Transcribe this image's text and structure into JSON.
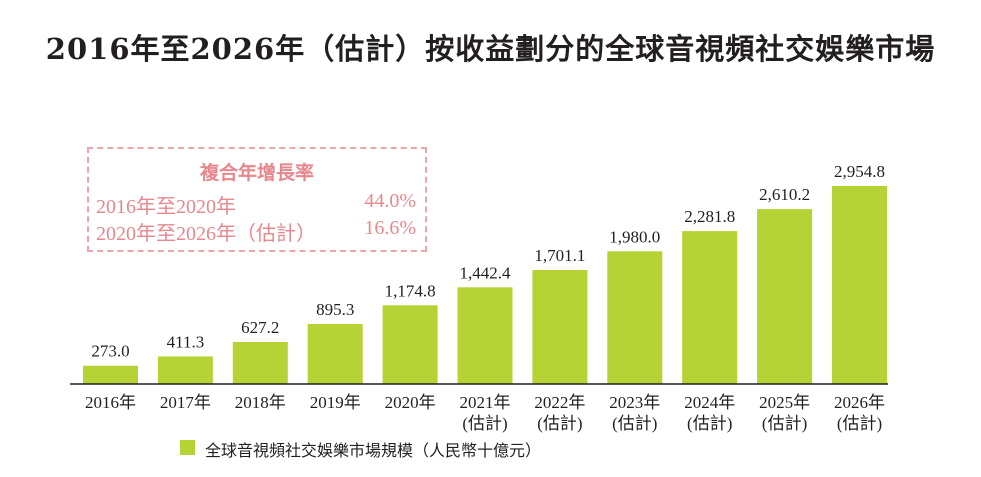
{
  "chart_data": {
    "type": "bar",
    "title": "2016年至2026年（估計）按收益劃分的全球音視頻社交娛樂市場",
    "categories": [
      [
        "2016年"
      ],
      [
        "2017年"
      ],
      [
        "2018年"
      ],
      [
        "2019年"
      ],
      [
        "2020年"
      ],
      [
        "2021年",
        "(估計)"
      ],
      [
        "2022年",
        "(估計)"
      ],
      [
        "2023年",
        "(估計)"
      ],
      [
        "2024年",
        "(估計)"
      ],
      [
        "2025年",
        "(估計)"
      ],
      [
        "2026年",
        "(估計)"
      ]
    ],
    "series": [
      {
        "name": "全球音視頻社交娛樂市場規模（人民幣十億元）",
        "values": [
          273.0,
          411.3,
          627.2,
          895.3,
          1174.8,
          1442.4,
          1701.1,
          1980.0,
          2281.8,
          2610.2,
          2954.8
        ],
        "value_labels": [
          "273.0",
          "411.3",
          "627.2",
          "895.3",
          "1,174.8",
          "1,442.4",
          "1,701.1",
          "1,980.0",
          "2,281.8",
          "2,610.2",
          "2,954.8"
        ],
        "color": "#b5d334"
      }
    ],
    "ylim": [
      0,
      2954.8
    ],
    "grid": false,
    "legend_position": "bottom-left",
    "cagr": {
      "title": "複合年增長率",
      "rows": [
        {
          "period": "2016年至2020年",
          "rate": "44.0%"
        },
        {
          "period": "2020年至2026年（估計）",
          "rate": "16.6%"
        }
      ],
      "color": "#e8878d"
    }
  }
}
